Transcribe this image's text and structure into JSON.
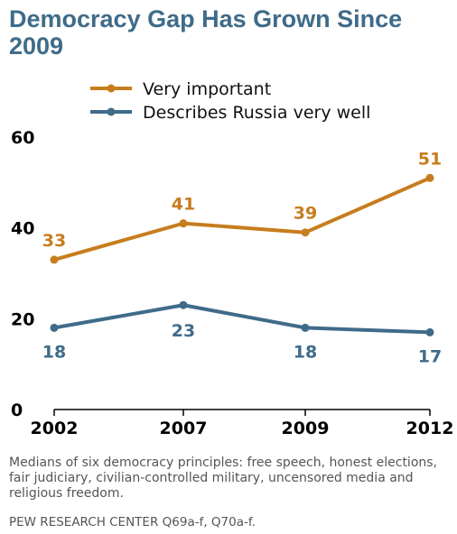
{
  "title": "Democracy Gap Has Grown Since 2009",
  "note": "Medians of six democracy principles: free speech, honest elections, fair judiciary, civilian-controlled military, uncensored media and religious freedom.",
  "source": "PEW RESEARCH CENTER Q69a-f, Q70a-f.",
  "colors": {
    "very_important": "#c77d1e",
    "describes_russia": "#3f6b89"
  },
  "chart_data": {
    "type": "line",
    "x": [
      "2002",
      "2007",
      "2009",
      "2012"
    ],
    "series": [
      {
        "name": "Very important",
        "values": [
          33,
          41,
          39,
          51
        ],
        "color": "#c77d1e"
      },
      {
        "name": "Describes Russia very well",
        "values": [
          18,
          23,
          18,
          17
        ],
        "color": "#3f6b89"
      }
    ],
    "y_ticks": [
      "0",
      "20",
      "40",
      "60"
    ],
    "ylim": [
      0,
      60
    ],
    "legend": "top",
    "grid": false
  }
}
